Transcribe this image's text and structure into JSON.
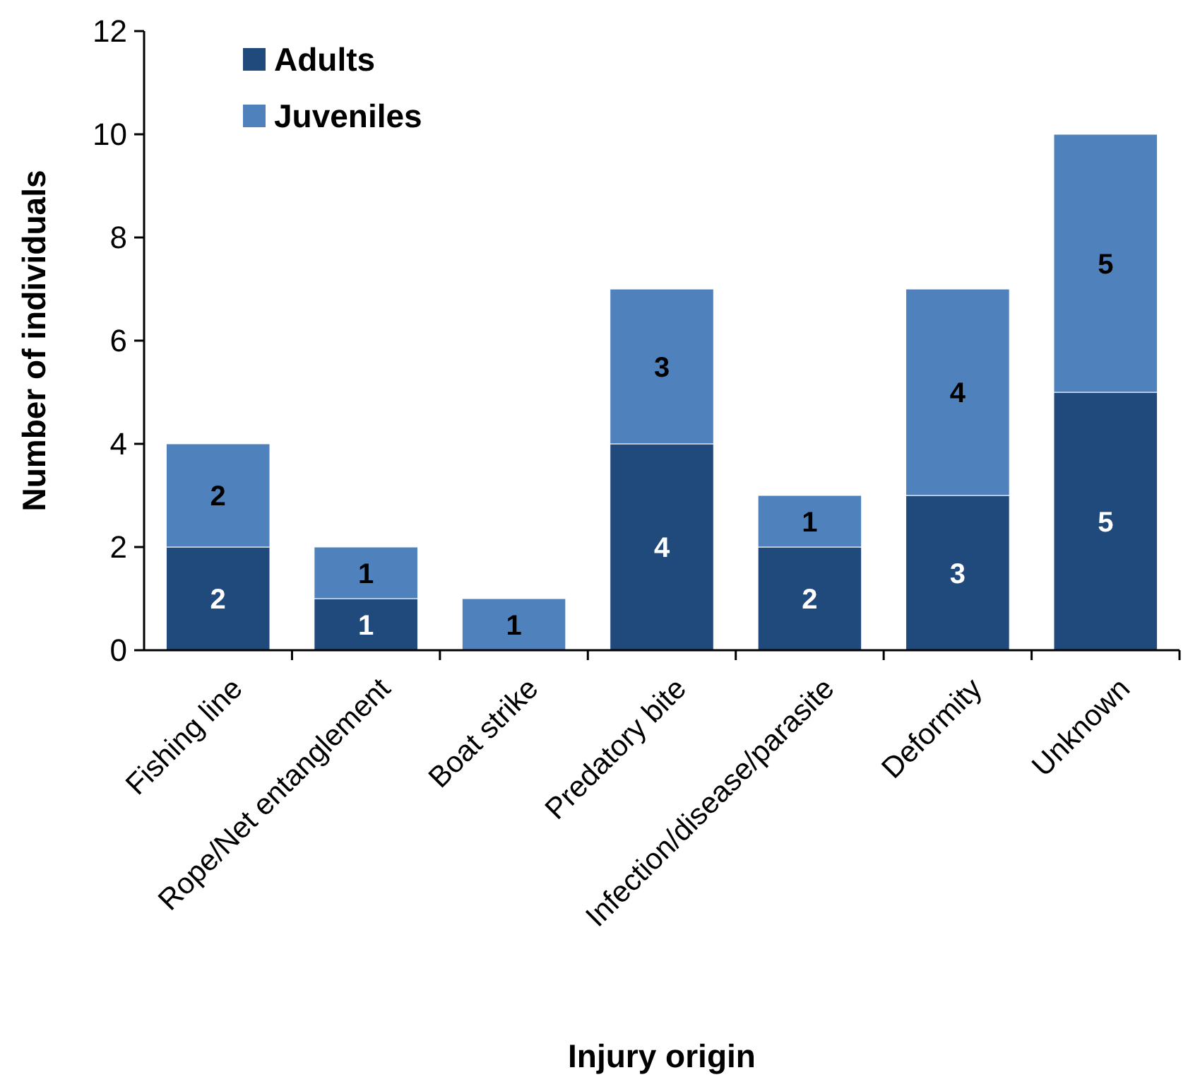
{
  "chart_data": {
    "type": "bar",
    "stacked": true,
    "xlabel": "Injury origin",
    "ylabel": "Number of individuals",
    "categories": [
      "Fishing line",
      "Rope/Net entanglement",
      "Boat strike",
      "Predatory bite",
      "Infection/disease/parasite",
      "Deformity",
      "Unknown"
    ],
    "series": [
      {
        "name": "Adults",
        "color": "#214a7c",
        "values": [
          2,
          1,
          0,
          4,
          2,
          3,
          5
        ],
        "value_labels": [
          "2",
          "1",
          null,
          "4",
          "2",
          "3",
          "5"
        ]
      },
      {
        "name": "Juveniles",
        "color": "#4f81bd",
        "values": [
          2,
          1,
          1,
          3,
          1,
          4,
          5
        ],
        "value_labels": [
          "2",
          "1",
          "1",
          "3",
          "1",
          "4",
          "5"
        ]
      }
    ],
    "ylim": [
      0,
      12
    ],
    "yticks": [
      0,
      2,
      4,
      6,
      8,
      10,
      12
    ],
    "grid": false,
    "legend": "top left"
  }
}
